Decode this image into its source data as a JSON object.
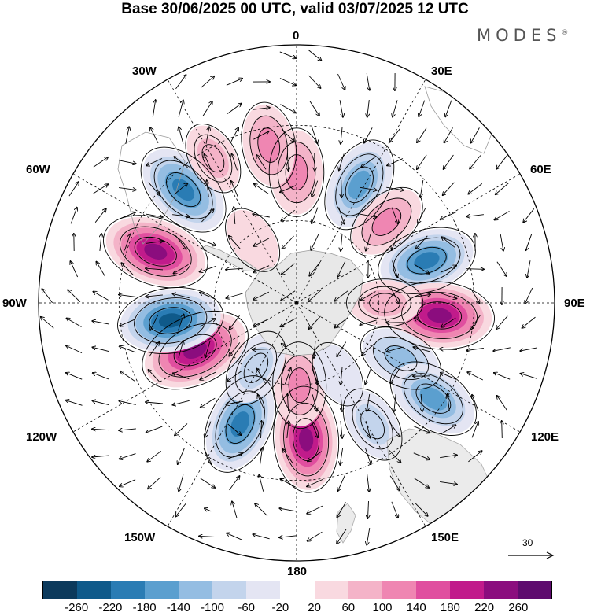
{
  "title": "Base 30/06/2025 00 UTC, valid 03/07/2025 12 UTC",
  "brand": "MODES",
  "brand_mark": "®",
  "longitude_labels": {
    "lon_0": "0",
    "lon_30e": "30E",
    "lon_60e": "60E",
    "lon_90e": "90E",
    "lon_120e": "120E",
    "lon_150e": "150E",
    "lon_180": "180",
    "lon_150w": "150W",
    "lon_120w": "120W",
    "lon_90w": "90W",
    "lon_60w": "60W",
    "lon_30w": "30W"
  },
  "reference_vector": "30",
  "colorbar": {
    "colors": [
      "#0c3a5c",
      "#0f5a8a",
      "#2a7cb4",
      "#5b9fcf",
      "#94bde2",
      "#c3d4ec",
      "#e4e5f3",
      "#ffffff",
      "#f9d9e0",
      "#f4b3c8",
      "#ef86b2",
      "#e04e9f",
      "#c11b8b",
      "#8b0d7e",
      "#5e0b6e"
    ],
    "tick_labels": [
      "-260",
      "-220",
      "-180",
      "-140",
      "-100",
      "-60",
      "-20",
      "20",
      "60",
      "100",
      "140",
      "180",
      "220",
      "260"
    ]
  },
  "map": {
    "projection": "south polar stereographic",
    "land_color": "#e8e8e8",
    "anomalies": [
      {
        "lon": 0,
        "lat": -44,
        "value": 130
      },
      {
        "lon": 28,
        "lat": -43,
        "value": -170
      },
      {
        "lon": 48,
        "lat": -47,
        "value": 110
      },
      {
        "lon": 72,
        "lat": -42,
        "value": -190
      },
      {
        "lon": 95,
        "lat": -40,
        "value": 240
      },
      {
        "lon": 90,
        "lat": -58,
        "value": 70
      },
      {
        "lon": 118,
        "lat": -48,
        "value": -120
      },
      {
        "lon": 125,
        "lat": -33,
        "value": -170
      },
      {
        "lon": 148,
        "lat": -40,
        "value": -80
      },
      {
        "lon": 176,
        "lat": -42,
        "value": 220
      },
      {
        "lon": 178,
        "lat": -60,
        "value": 120
      },
      {
        "lon": 150,
        "lat": -60,
        "value": -30
      },
      {
        "lon": 205,
        "lat": -43,
        "value": -200
      },
      {
        "lon": 212,
        "lat": -62,
        "value": -90
      },
      {
        "lon": 245,
        "lat": -50,
        "value": 250
      },
      {
        "lon": 262,
        "lat": -45,
        "value": -220
      },
      {
        "lon": 290,
        "lat": -38,
        "value": 230
      },
      {
        "lon": 315,
        "lat": -35,
        "value": -200
      },
      {
        "lon": 330,
        "lat": -33,
        "value": 60
      },
      {
        "lon": 325,
        "lat": -62,
        "value": 40
      },
      {
        "lon": 350,
        "lat": -35,
        "value": 120
      }
    ]
  }
}
